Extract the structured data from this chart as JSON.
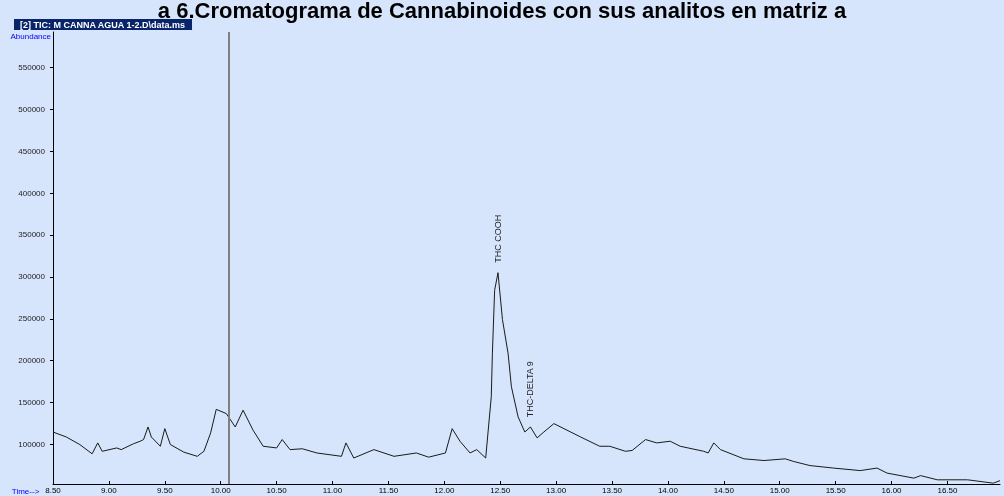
{
  "chart_data": {
    "type": "line",
    "title": "a 6.Cromatograma de Cannabinoides con sus analitos en matriz a",
    "subtitle": "[2] TIC: M CANNA AGUA 1-2.D\\data.ms",
    "xlabel": "Time-->",
    "ylabel": "Abundance",
    "x": [
      8.5,
      8.62,
      8.74,
      8.85,
      8.9,
      8.94,
      9.07,
      9.11,
      9.22,
      9.28,
      9.31,
      9.35,
      9.38,
      9.46,
      9.5,
      9.55,
      9.67,
      9.79,
      9.85,
      9.91,
      9.96,
      10.05,
      10.13,
      10.2,
      10.29,
      10.38,
      10.5,
      10.55,
      10.62,
      10.73,
      10.86,
      11.08,
      11.12,
      11.19,
      11.37,
      11.55,
      11.75,
      11.86,
      12.01,
      12.07,
      12.14,
      12.23,
      12.29,
      12.37,
      12.42,
      12.43,
      12.45,
      12.48,
      12.52,
      12.57,
      12.6,
      12.66,
      12.72,
      12.77,
      12.83,
      12.89,
      12.98,
      13.22,
      13.39,
      13.48,
      13.62,
      13.68,
      13.8,
      13.9,
      14.02,
      14.11,
      14.32,
      14.36,
      14.41,
      14.47,
      14.68,
      14.86,
      15.05,
      15.12,
      15.27,
      15.48,
      15.72,
      15.87,
      15.96,
      16.2,
      16.26,
      16.41,
      16.68,
      16.91,
      16.97
    ],
    "series": [
      {
        "color": "#1a1a1a",
        "values": [
          115000,
          109000,
          100000,
          89000,
          102000,
          92000,
          96000,
          94000,
          101000,
          104000,
          106000,
          121000,
          109000,
          98000,
          119000,
          100000,
          91000,
          86000,
          92000,
          114000,
          142000,
          137000,
          121000,
          141000,
          117000,
          98000,
          96000,
          106000,
          94000,
          95000,
          90000,
          86000,
          102000,
          84000,
          94000,
          86000,
          90000,
          85000,
          90000,
          119000,
          104000,
          90000,
          94000,
          84000,
          157000,
          209000,
          284000,
          305000,
          249000,
          209000,
          169000,
          133000,
          115000,
          121000,
          108000,
          115000,
          125000,
          109000,
          98000,
          98000,
          92000,
          93000,
          106000,
          102000,
          104000,
          98000,
          92000,
          90000,
          102000,
          94000,
          83000,
          81000,
          83000,
          80000,
          75000,
          72000,
          69000,
          72000,
          66000,
          60000,
          63000,
          58000,
          58000,
          54000,
          57000
        ]
      }
    ],
    "xlim": [
      8.5,
      16.97
    ],
    "ylim": [
      53000,
      592000
    ],
    "xticks": [
      {
        "value": 8.5,
        "label": "8.50"
      },
      {
        "value": 9,
        "label": "9.00"
      },
      {
        "value": 9.5,
        "label": "9.50"
      },
      {
        "value": 10,
        "label": "10.00"
      },
      {
        "value": 10.5,
        "label": "10.50"
      },
      {
        "value": 11,
        "label": "11.00"
      },
      {
        "value": 11.5,
        "label": "11.50"
      },
      {
        "value": 12,
        "label": "12.00"
      },
      {
        "value": 12.5,
        "label": "12.50"
      },
      {
        "value": 13,
        "label": "13.00"
      },
      {
        "value": 13.5,
        "label": "13.50"
      },
      {
        "value": 14,
        "label": "14.00"
      },
      {
        "value": 14.5,
        "label": "14.50"
      },
      {
        "value": 15,
        "label": "15.00"
      },
      {
        "value": 15.5,
        "label": "15.50"
      },
      {
        "value": 16,
        "label": "16.00"
      },
      {
        "value": 16.5,
        "label": "16.50"
      }
    ],
    "yticks": [
      100000,
      150000,
      200000,
      250000,
      300000,
      350000,
      400000,
      450000,
      500000,
      550000
    ],
    "ref_lines": [
      {
        "axis": "x",
        "value": 10.07,
        "color": "#808080"
      }
    ],
    "annotations": [
      {
        "text": "THC COOH",
        "x": 12.48,
        "y": 305000
      },
      {
        "text": "THC-DELTA 9",
        "x": 12.77,
        "y": 120600
      }
    ],
    "marker": "none",
    "line_style": "solid"
  }
}
